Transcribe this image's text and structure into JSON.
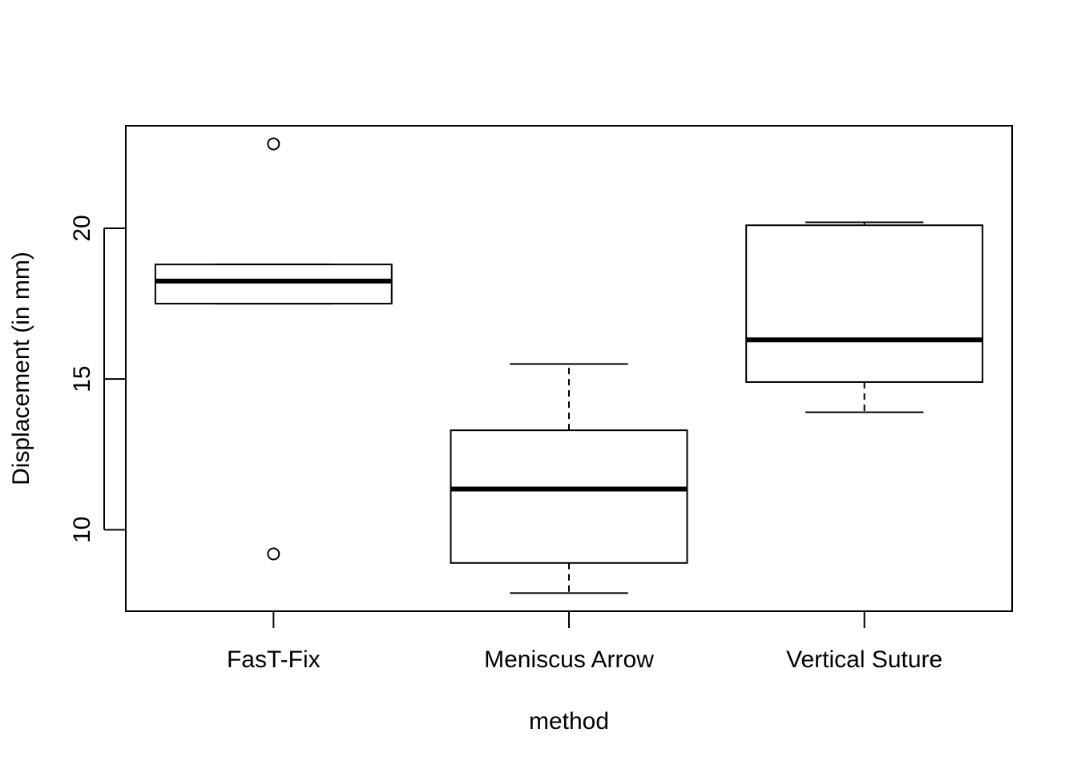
{
  "chart_data": {
    "type": "boxplot",
    "title": "",
    "xlabel": "method",
    "ylabel": "Displacement (in mm)",
    "ylim": [
      7.3,
      23.4
    ],
    "yticks": [
      10,
      15,
      20
    ],
    "grid": false,
    "categories": [
      "FasT-Fix",
      "Meniscus Arrow",
      "Vertical Suture"
    ],
    "boxes": [
      {
        "category": "FasT-Fix",
        "whisker_low": 17.5,
        "q1": 17.5,
        "median": 18.25,
        "q3": 18.8,
        "whisker_high": 18.8,
        "outliers": [
          22.8,
          9.2
        ]
      },
      {
        "category": "Meniscus Arrow",
        "whisker_low": 7.9,
        "q1": 8.9,
        "median": 11.35,
        "q3": 13.3,
        "whisker_high": 15.5,
        "outliers": []
      },
      {
        "category": "Vertical Suture",
        "whisker_low": 13.9,
        "q1": 14.9,
        "median": 16.3,
        "q3": 20.1,
        "whisker_high": 20.2,
        "outliers": []
      }
    ]
  }
}
